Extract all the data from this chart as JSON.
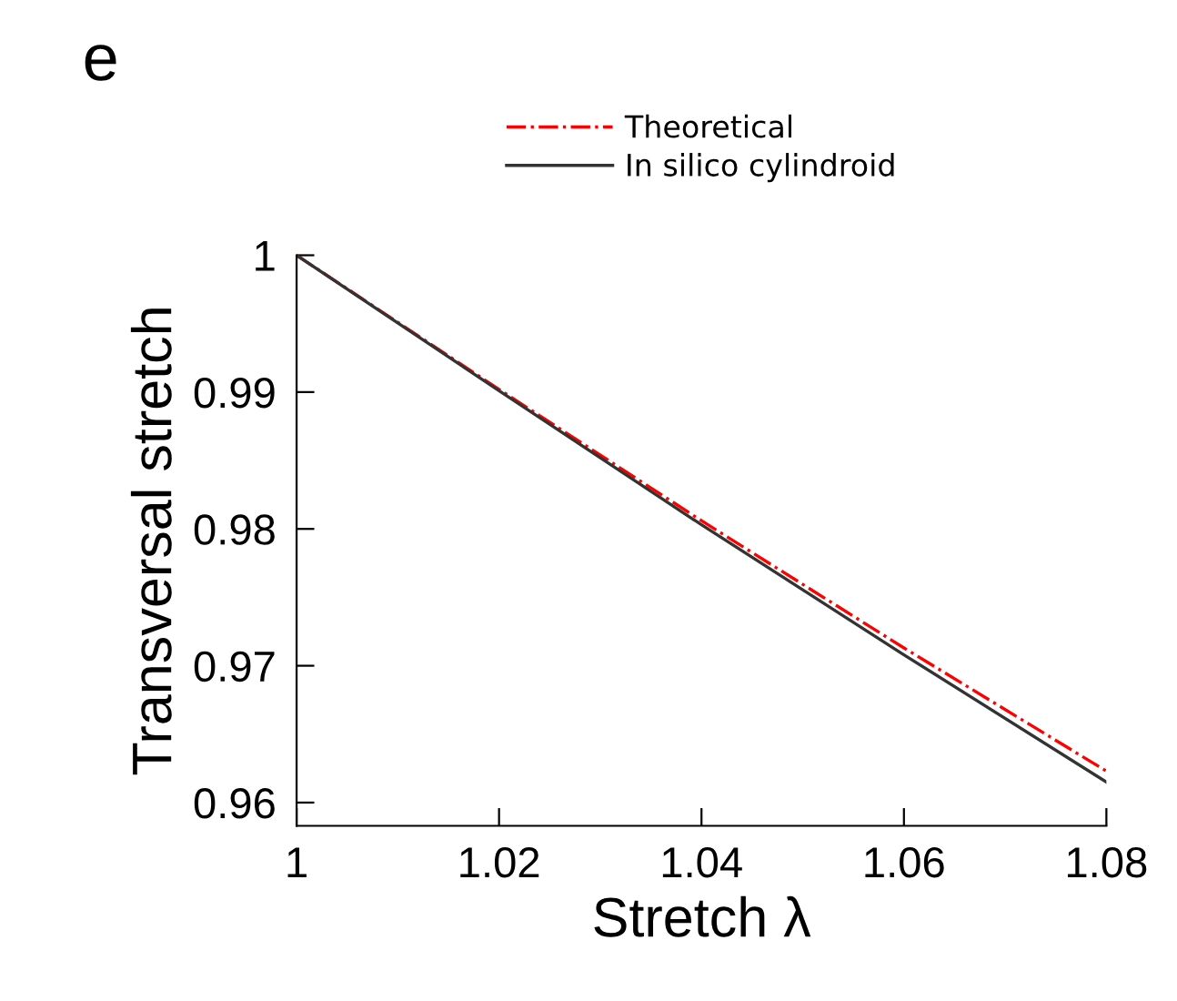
{
  "chart_data": {
    "type": "line",
    "xlabel": "Stretch λ",
    "ylabel": "Transversal stretch",
    "annotations": [
      "e"
    ],
    "x": [
      1,
      1.02,
      1.04,
      1.06,
      1.08
    ],
    "series": [
      {
        "name": "Theoretical",
        "color": "#ff0000",
        "line_style": "dashdot",
        "values": [
          1,
          0.9902,
          0.9806,
          0.9713,
          0.9623
        ]
      },
      {
        "name": "In silico cylindroid",
        "color": "#333333",
        "line_style": "solid",
        "values": [
          1,
          0.9901,
          0.9803,
          0.9708,
          0.9615
        ]
      }
    ],
    "xlim": [
      1,
      1.08
    ],
    "xticks": [
      1,
      1.02,
      1.04,
      1.06,
      1.08
    ],
    "ylim": [
      0.9583,
      1
    ],
    "yticks": [
      0.96,
      0.97,
      0.98,
      0.99,
      1
    ],
    "grid": false,
    "legend": "top",
    "marker": "none"
  }
}
